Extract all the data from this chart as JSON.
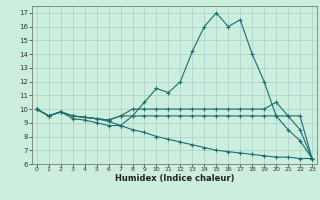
{
  "title": "",
  "xlabel": "Humidex (Indice chaleur)",
  "bg_color": "#cceedd",
  "line_color": "#1a6e6e",
  "grid_color": "#aacccc",
  "xlim": [
    0,
    23
  ],
  "ylim": [
    6,
    17.5
  ],
  "xticks": [
    0,
    1,
    2,
    3,
    4,
    5,
    6,
    7,
    8,
    9,
    10,
    11,
    12,
    13,
    14,
    15,
    16,
    17,
    18,
    19,
    20,
    21,
    22,
    23
  ],
  "yticks": [
    6,
    7,
    8,
    9,
    10,
    11,
    12,
    13,
    14,
    15,
    16,
    17
  ],
  "line1_x": [
    0,
    1,
    2,
    3,
    4,
    5,
    6,
    7,
    8,
    9,
    10,
    11,
    12,
    13,
    14,
    15,
    16,
    17,
    18,
    19,
    20,
    21,
    22,
    23
  ],
  "line1_y": [
    10.0,
    9.5,
    9.8,
    9.5,
    9.4,
    9.3,
    9.1,
    8.8,
    9.5,
    10.5,
    11.5,
    11.2,
    12.0,
    14.2,
    16.0,
    17.0,
    16.0,
    16.5,
    14.0,
    12.0,
    9.5,
    8.5,
    7.7,
    6.4
  ],
  "line2_x": [
    0,
    1,
    2,
    3,
    4,
    5,
    6,
    7,
    8,
    9,
    10,
    11,
    12,
    13,
    14,
    15,
    16,
    17,
    18,
    19,
    20,
    21,
    22,
    23
  ],
  "line2_y": [
    10.0,
    9.5,
    9.8,
    9.5,
    9.4,
    9.3,
    9.2,
    9.5,
    10.0,
    10.0,
    10.0,
    10.0,
    10.0,
    10.0,
    10.0,
    10.0,
    10.0,
    10.0,
    10.0,
    10.0,
    10.5,
    9.5,
    8.5,
    6.4
  ],
  "line3_x": [
    0,
    1,
    2,
    3,
    4,
    5,
    6,
    7,
    8,
    9,
    10,
    11,
    12,
    13,
    14,
    15,
    16,
    17,
    18,
    19,
    20,
    21,
    22,
    23
  ],
  "line3_y": [
    10.0,
    9.5,
    9.8,
    9.5,
    9.4,
    9.3,
    9.2,
    9.5,
    9.5,
    9.5,
    9.5,
    9.5,
    9.5,
    9.5,
    9.5,
    9.5,
    9.5,
    9.5,
    9.5,
    9.5,
    9.5,
    9.5,
    9.5,
    6.4
  ],
  "line4_x": [
    0,
    1,
    2,
    3,
    4,
    5,
    6,
    7,
    8,
    9,
    10,
    11,
    12,
    13,
    14,
    15,
    16,
    17,
    18,
    19,
    20,
    21,
    22,
    23
  ],
  "line4_y": [
    10.0,
    9.5,
    9.8,
    9.3,
    9.2,
    9.0,
    8.8,
    8.8,
    8.5,
    8.3,
    8.0,
    7.8,
    7.6,
    7.4,
    7.2,
    7.0,
    6.9,
    6.8,
    6.7,
    6.6,
    6.5,
    6.5,
    6.4,
    6.4
  ]
}
